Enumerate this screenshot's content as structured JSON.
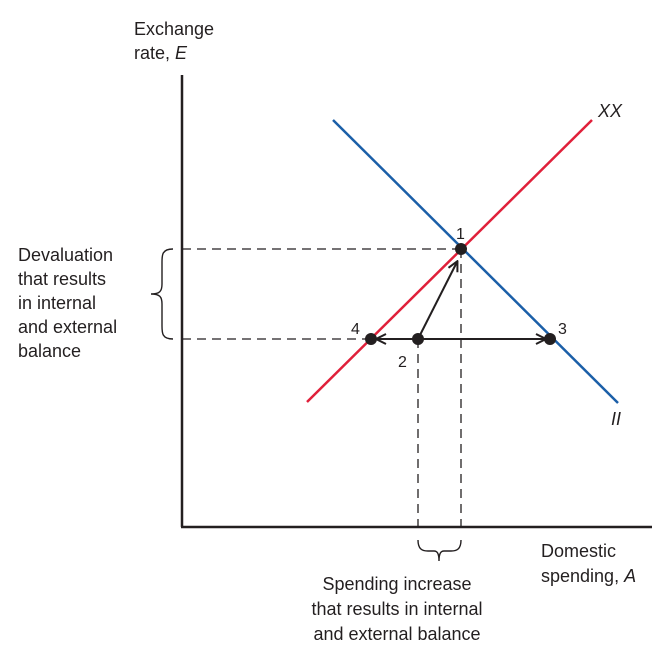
{
  "axes": {
    "y_label_line1": "Exchange",
    "y_label_line2_prefix": "rate, ",
    "y_label_var": "E",
    "x_label_line1": "Domestic",
    "x_label_line2_prefix": "spending, ",
    "x_label_var": "A"
  },
  "curves": {
    "xx_label": "XX",
    "ii_label": "II",
    "xx_color": "#e0203a",
    "ii_color": "#1b5fa8"
  },
  "points": {
    "p1": "1",
    "p2": "2",
    "p3": "3",
    "p4": "4"
  },
  "annotations": {
    "devaluation": [
      "Devaluation",
      "that results",
      "in internal",
      "and external",
      "balance"
    ],
    "spending": [
      "Spending increase",
      "that results in internal",
      "and external balance"
    ]
  }
}
